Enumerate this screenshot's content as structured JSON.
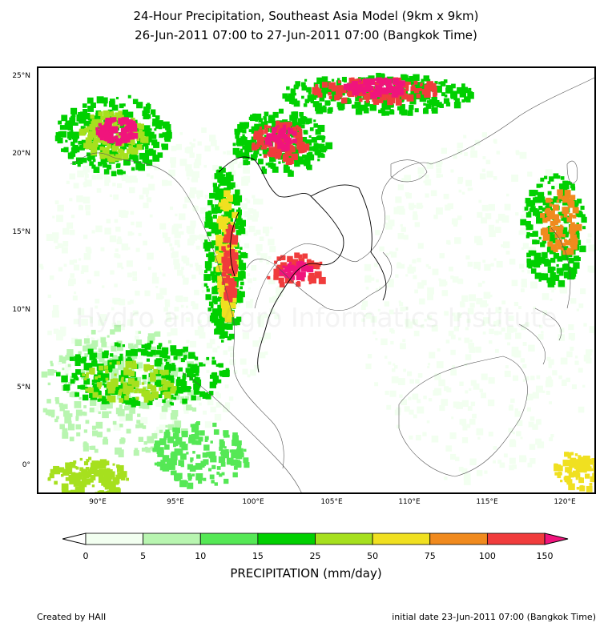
{
  "title_line1": "24-Hour Precipitation, Southeast Asia Model (9km x 9km)",
  "title_line2": "26-Jun-2011 07:00 to 27-Jun-2011 07:00 (Bangkok Time)",
  "map": {
    "watermark": "Hydro and Agro Informatics Institute",
    "lat_labels": [
      "25°N",
      "20°N",
      "15°N",
      "10°N",
      "5°N",
      "0°"
    ],
    "lon_labels": [
      "90°E",
      "95°E",
      "100°E",
      "105°E",
      "110°E",
      "115°E",
      "120°E"
    ]
  },
  "colorbar": {
    "title": "PRECIPITATION (mm/day)",
    "levels": [
      "0",
      "5",
      "10",
      "15",
      "25",
      "50",
      "75",
      "100",
      "150"
    ],
    "colors": [
      "#f2fff0",
      "#b8f5b0",
      "#55e855",
      "#00d000",
      "#a6e01e",
      "#f0e020",
      "#f08a1e",
      "#f03c3c",
      "#f0147c"
    ]
  },
  "footer": {
    "created_by": "Created by HAII",
    "initial_date": "initial date 23-Jun-2011 07:00 (Bangkok Time)"
  }
}
